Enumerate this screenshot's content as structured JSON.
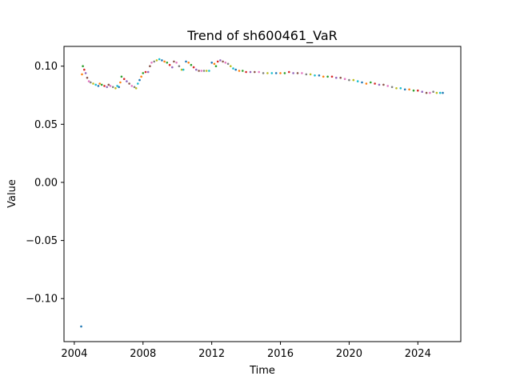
{
  "chart_data": {
    "type": "scatter",
    "title": "Trend of sh600461_VaR",
    "xlabel": "Time",
    "ylabel": "Value",
    "xlim": [
      2003.4,
      2026.5
    ],
    "ylim": [
      -0.137,
      0.117
    ],
    "x_ticks": [
      2004,
      2008,
      2012,
      2016,
      2020,
      2024
    ],
    "x_tick_labels": [
      "2004",
      "2008",
      "2012",
      "2016",
      "2020",
      "2024"
    ],
    "y_ticks": [
      -0.1,
      -0.05,
      0.0,
      0.05,
      0.1
    ],
    "y_tick_labels": [
      "−0.10",
      "−0.05",
      "0.00",
      "0.05",
      "0.10"
    ],
    "grid": false,
    "marker_colors": [
      "#1f77b4",
      "#ff7f0e",
      "#2ca02c",
      "#d62728",
      "#9467bd",
      "#8c564b",
      "#e377c2",
      "#7f7f7f",
      "#bcbd22",
      "#17becf"
    ],
    "series": [
      {
        "points": [
          [
            2004.4,
            -0.124
          ],
          [
            2004.45,
            0.093
          ],
          [
            2004.5,
            0.1
          ],
          [
            2004.58,
            0.097
          ],
          [
            2004.66,
            0.094
          ],
          [
            2004.75,
            0.09
          ],
          [
            2004.85,
            0.087
          ],
          [
            2004.95,
            0.086
          ],
          [
            2005.1,
            0.085
          ],
          [
            2005.25,
            0.084
          ],
          [
            2005.4,
            0.083
          ],
          [
            2005.48,
            0.085
          ],
          [
            2005.6,
            0.084
          ],
          [
            2005.75,
            0.083
          ],
          [
            2005.9,
            0.082
          ],
          [
            2006.0,
            0.084
          ],
          [
            2006.1,
            0.083
          ],
          [
            2006.25,
            0.082
          ],
          [
            2006.4,
            0.081
          ],
          [
            2006.5,
            0.083
          ],
          [
            2006.6,
            0.082
          ],
          [
            2006.68,
            0.086
          ],
          [
            2006.75,
            0.091
          ],
          [
            2006.9,
            0.089
          ],
          [
            2007.05,
            0.087
          ],
          [
            2007.2,
            0.085
          ],
          [
            2007.35,
            0.083
          ],
          [
            2007.5,
            0.082
          ],
          [
            2007.6,
            0.081
          ],
          [
            2007.7,
            0.085
          ],
          [
            2007.8,
            0.088
          ],
          [
            2007.9,
            0.091
          ],
          [
            2008.0,
            0.094
          ],
          [
            2008.15,
            0.095
          ],
          [
            2008.3,
            0.095
          ],
          [
            2008.4,
            0.1
          ],
          [
            2008.5,
            0.103
          ],
          [
            2008.65,
            0.104
          ],
          [
            2008.8,
            0.105
          ],
          [
            2008.95,
            0.106
          ],
          [
            2009.1,
            0.105
          ],
          [
            2009.25,
            0.104
          ],
          [
            2009.4,
            0.103
          ],
          [
            2009.55,
            0.101
          ],
          [
            2009.7,
            0.099
          ],
          [
            2009.8,
            0.104
          ],
          [
            2009.95,
            0.103
          ],
          [
            2010.1,
            0.1
          ],
          [
            2010.25,
            0.097
          ],
          [
            2010.35,
            0.097
          ],
          [
            2010.5,
            0.104
          ],
          [
            2010.65,
            0.103
          ],
          [
            2010.8,
            0.101
          ],
          [
            2010.95,
            0.099
          ],
          [
            2011.1,
            0.097
          ],
          [
            2011.25,
            0.096
          ],
          [
            2011.4,
            0.096
          ],
          [
            2011.55,
            0.096
          ],
          [
            2011.7,
            0.096
          ],
          [
            2011.85,
            0.096
          ],
          [
            2012.0,
            0.103
          ],
          [
            2012.15,
            0.102
          ],
          [
            2012.25,
            0.1
          ],
          [
            2012.35,
            0.104
          ],
          [
            2012.5,
            0.105
          ],
          [
            2012.65,
            0.104
          ],
          [
            2012.8,
            0.103
          ],
          [
            2012.95,
            0.102
          ],
          [
            2013.1,
            0.1
          ],
          [
            2013.25,
            0.098
          ],
          [
            2013.4,
            0.097
          ],
          [
            2013.6,
            0.096
          ],
          [
            2013.8,
            0.096
          ],
          [
            2014.0,
            0.095
          ],
          [
            2014.25,
            0.095
          ],
          [
            2014.5,
            0.095
          ],
          [
            2014.75,
            0.095
          ],
          [
            2015.0,
            0.094
          ],
          [
            2015.25,
            0.094
          ],
          [
            2015.5,
            0.094
          ],
          [
            2015.75,
            0.094
          ],
          [
            2016.0,
            0.094
          ],
          [
            2016.25,
            0.094
          ],
          [
            2016.5,
            0.095
          ],
          [
            2016.75,
            0.094
          ],
          [
            2017.0,
            0.094
          ],
          [
            2017.25,
            0.094
          ],
          [
            2017.5,
            0.093
          ],
          [
            2017.75,
            0.093
          ],
          [
            2018.0,
            0.092
          ],
          [
            2018.25,
            0.092
          ],
          [
            2018.5,
            0.091
          ],
          [
            2018.75,
            0.091
          ],
          [
            2019.0,
            0.091
          ],
          [
            2019.25,
            0.09
          ],
          [
            2019.5,
            0.09
          ],
          [
            2019.75,
            0.089
          ],
          [
            2020.0,
            0.088
          ],
          [
            2020.25,
            0.088
          ],
          [
            2020.5,
            0.087
          ],
          [
            2020.75,
            0.086
          ],
          [
            2021.0,
            0.085
          ],
          [
            2021.25,
            0.086
          ],
          [
            2021.5,
            0.085
          ],
          [
            2021.75,
            0.084
          ],
          [
            2022.0,
            0.084
          ],
          [
            2022.25,
            0.083
          ],
          [
            2022.5,
            0.082
          ],
          [
            2022.75,
            0.081
          ],
          [
            2023.0,
            0.081
          ],
          [
            2023.25,
            0.08
          ],
          [
            2023.5,
            0.08
          ],
          [
            2023.75,
            0.079
          ],
          [
            2024.0,
            0.079
          ],
          [
            2024.25,
            0.078
          ],
          [
            2024.5,
            0.077
          ],
          [
            2024.7,
            0.077
          ],
          [
            2024.9,
            0.078
          ],
          [
            2025.1,
            0.077
          ],
          [
            2025.3,
            0.077
          ],
          [
            2025.45,
            0.077
          ]
        ]
      }
    ]
  }
}
